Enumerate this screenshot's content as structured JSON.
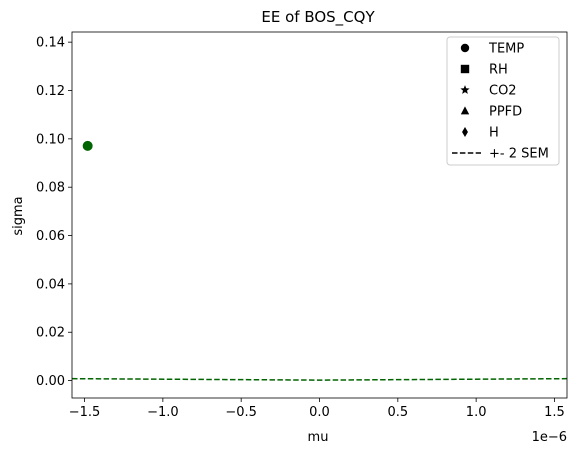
{
  "chart_data": {
    "type": "scatter",
    "title": "EE of BOS_CQY",
    "xlabel": "mu",
    "ylabel": "sigma",
    "x_offset_text": "1e−6",
    "xlim": [
      -1.58e-06,
      1.58e-06
    ],
    "ylim": [
      -0.0072,
      0.1442
    ],
    "x_ticks": [
      -1.5e-06,
      -1e-06,
      -5e-07,
      0.0,
      5e-07,
      1e-06,
      1.5e-06
    ],
    "x_tick_labels": [
      "−1.5",
      "−1.0",
      "−0.5",
      "0.0",
      "0.5",
      "1.0",
      "1.5"
    ],
    "y_ticks": [
      0.0,
      0.02,
      0.04,
      0.06,
      0.08,
      0.1,
      0.12,
      0.14
    ],
    "y_tick_labels": [
      "0.00",
      "0.02",
      "0.04",
      "0.06",
      "0.08",
      "0.10",
      "0.12",
      "0.14"
    ],
    "grid": false,
    "legend_position": "top-right",
    "series": [
      {
        "name": "TEMP",
        "marker": "circle",
        "color": "#006400",
        "points": [
          {
            "x": -1.48e-06,
            "y": 0.0971
          }
        ]
      },
      {
        "name": "RH",
        "marker": "square",
        "color": "#006400",
        "points": []
      },
      {
        "name": "CO2",
        "marker": "star",
        "color": "#006400",
        "points": []
      },
      {
        "name": "PPFD",
        "marker": "triangle",
        "color": "#006400",
        "points": []
      },
      {
        "name": "H",
        "marker": "diamond",
        "color": "#006400",
        "points": []
      }
    ],
    "sem_line": {
      "name": "+- 2 SEM",
      "style": "dashed",
      "color": "#006400",
      "x": [
        -1.58e-06,
        0.0,
        1.58e-06
      ],
      "y": [
        0.0008,
        0.0002,
        0.0008
      ]
    },
    "legend": [
      {
        "label": "TEMP",
        "marker": "circle"
      },
      {
        "label": "RH",
        "marker": "square"
      },
      {
        "label": "CO2",
        "marker": "star"
      },
      {
        "label": "PPFD",
        "marker": "triangle"
      },
      {
        "label": "H",
        "marker": "diamond"
      },
      {
        "label": "+- 2 SEM",
        "marker": "dashed-line"
      }
    ]
  }
}
